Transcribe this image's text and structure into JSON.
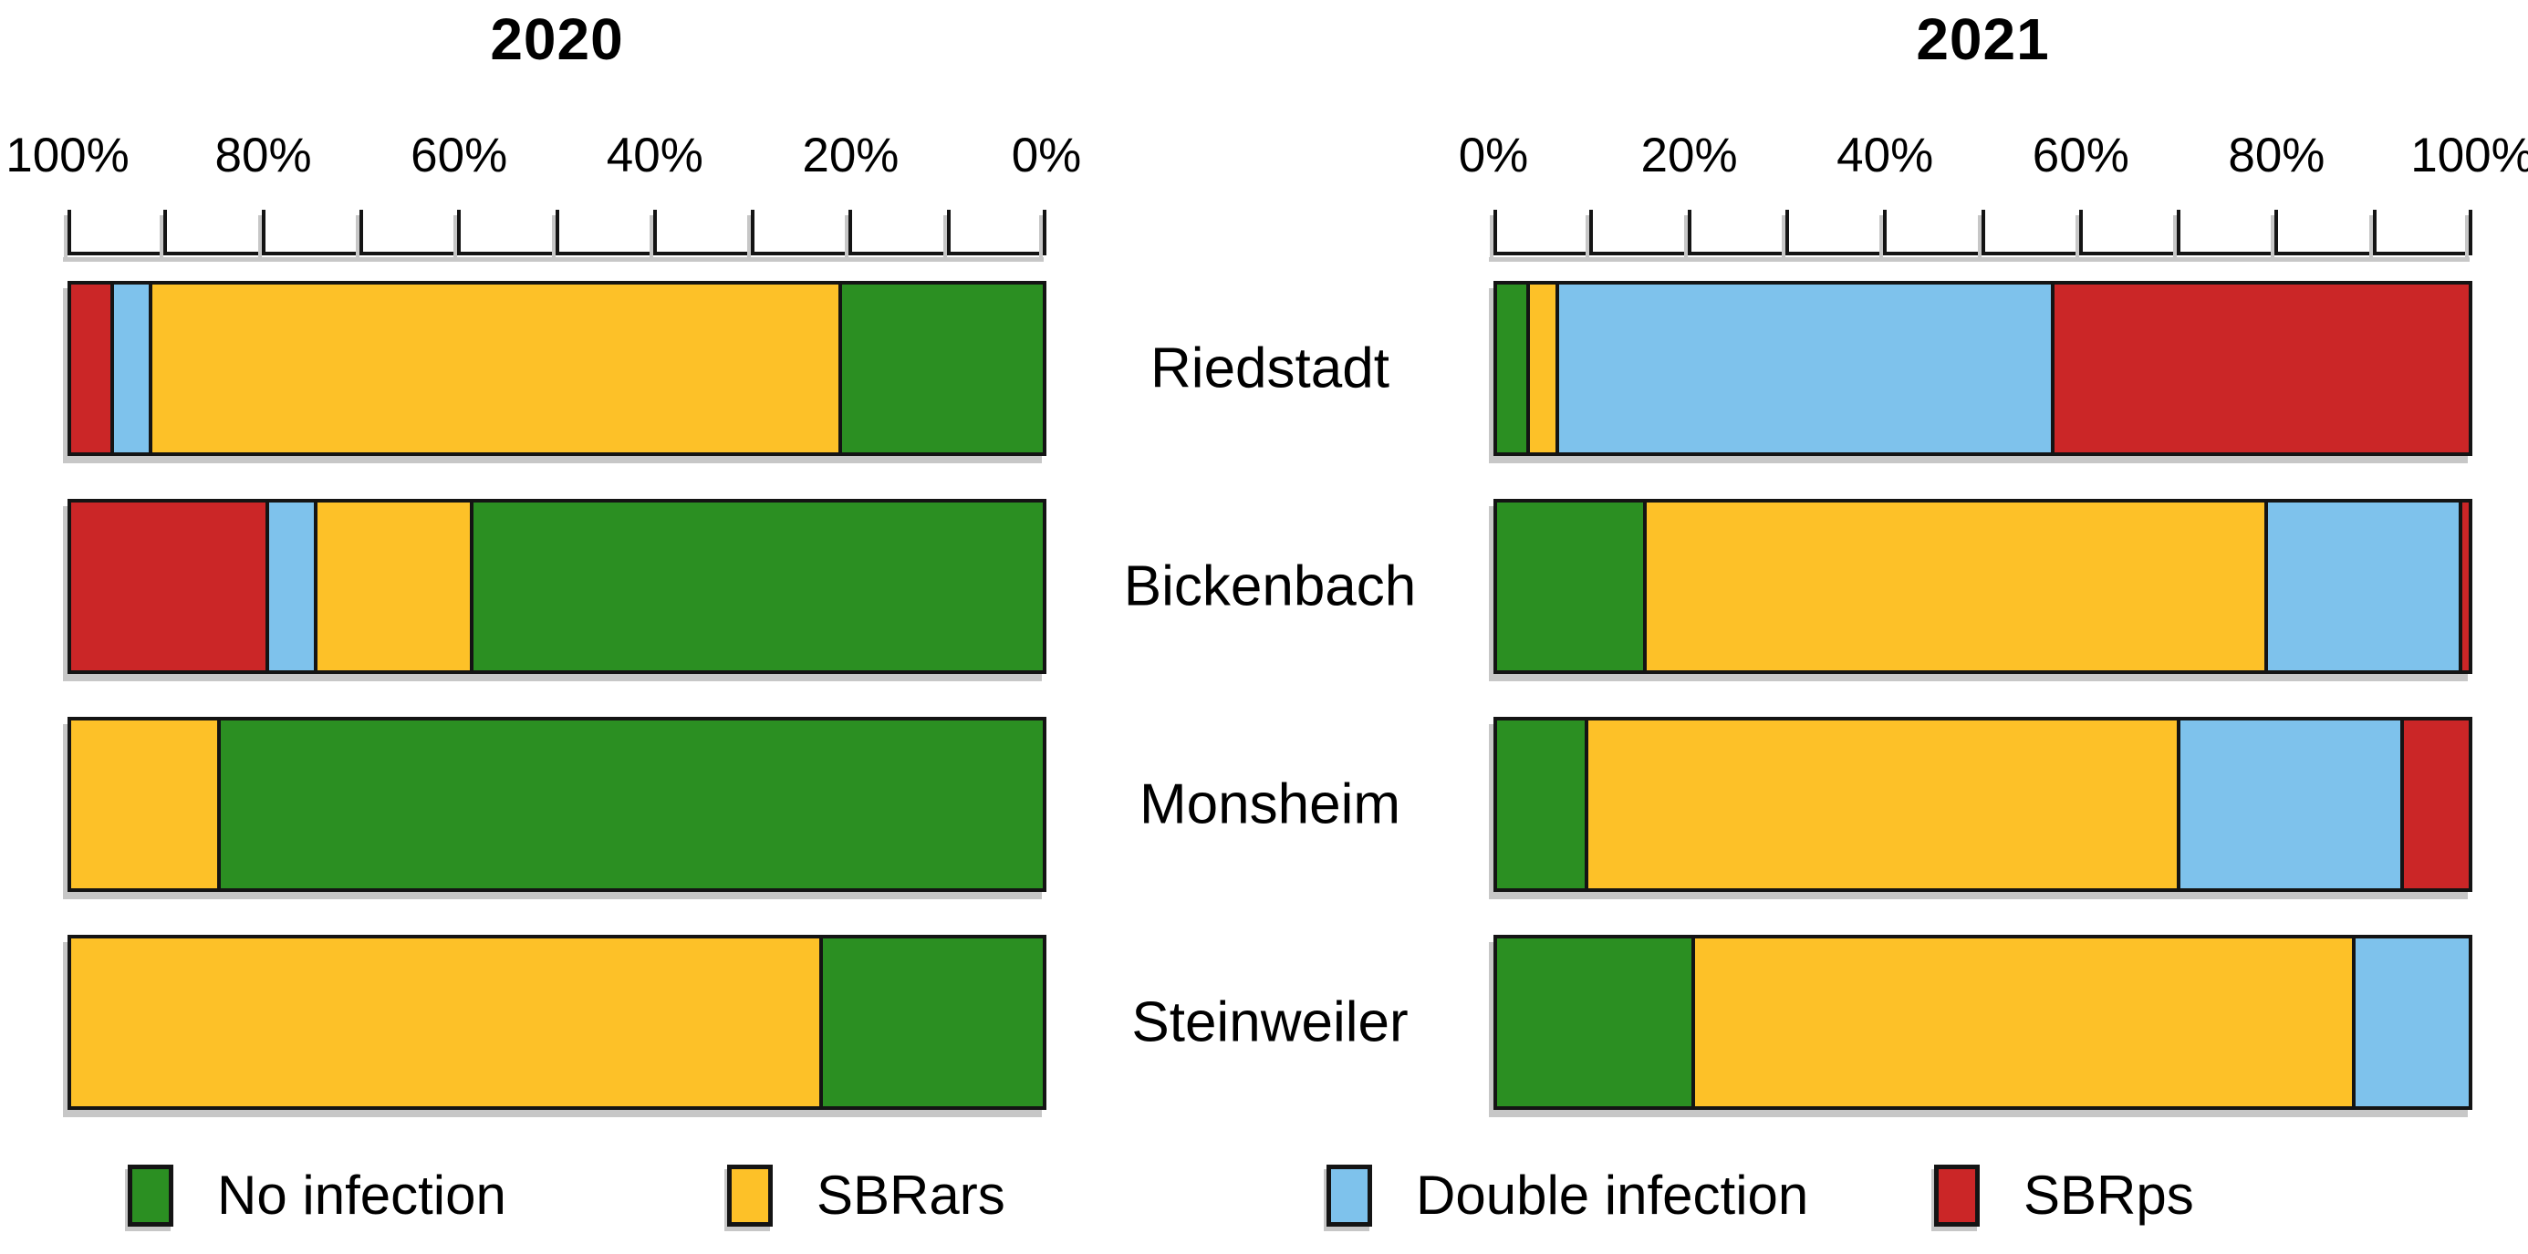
{
  "figure": {
    "background": "#ffffff",
    "border_color": "#141414",
    "shadow_color": "#c7c7c7"
  },
  "categories": [
    "Riedstadt",
    "Bickenbach",
    "Monsheim",
    "Steinweiler"
  ],
  "legend": [
    {
      "label": "No infection",
      "color": "#2b8f22",
      "swatch": "green-swatch"
    },
    {
      "label": "SBRars",
      "color": "#fdc128",
      "swatch": "yellow-swatch"
    },
    {
      "label": "Double infection",
      "color": "#7ec2ec",
      "swatch": "blue-swatch"
    },
    {
      "label": "SBRps",
      "color": "#cb2627",
      "swatch": "red-swatch"
    }
  ],
  "chart_data": {
    "type": "bar",
    "orientation": "horizontal",
    "stacked": true,
    "unit": "percent",
    "grid": false,
    "legend_position": "bottom",
    "categories": [
      "Riedstadt",
      "Bickenbach",
      "Monsheim",
      "Steinweiler"
    ],
    "panels": [
      {
        "title": "2020",
        "axis_direction": "right-to-left",
        "axis_range": [
          0,
          100
        ],
        "tick_step_minor": 10,
        "tick_labels": [
          "100%",
          "80%",
          "60%",
          "40%",
          "20%",
          "0%"
        ],
        "series": [
          {
            "name": "No infection",
            "values": [
              21,
              59,
              85,
              23
            ]
          },
          {
            "name": "SBRars",
            "values": [
              71,
              16,
              15,
              77
            ]
          },
          {
            "name": "Double infection",
            "values": [
              4,
              5,
              0,
              0
            ]
          },
          {
            "name": "SBRps",
            "values": [
              4,
              20,
              0,
              0
            ]
          }
        ]
      },
      {
        "title": "2021",
        "axis_direction": "left-to-right",
        "axis_range": [
          0,
          100
        ],
        "tick_step_minor": 10,
        "tick_labels": [
          "0%",
          "20%",
          "40%",
          "60%",
          "80%",
          "100%"
        ],
        "series": [
          {
            "name": "No infection",
            "values": [
              3,
              15,
              9,
              20
            ]
          },
          {
            "name": "SBRars",
            "values": [
              3,
              64,
              61,
              68
            ]
          },
          {
            "name": "Double infection",
            "values": [
              51,
              20,
              23,
              12
            ]
          },
          {
            "name": "SBRps",
            "values": [
              43,
              1,
              7,
              0
            ]
          }
        ]
      }
    ]
  }
}
